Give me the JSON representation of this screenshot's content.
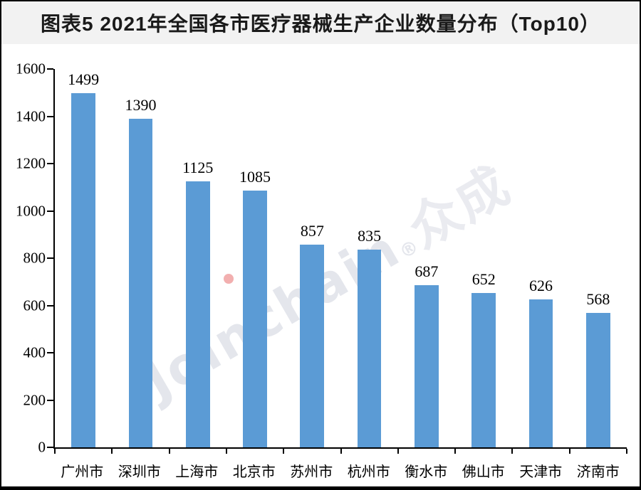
{
  "header": {
    "title": "图表5 2021年全国各市医疗器械生产企业数量分布（Top10）"
  },
  "watermark": {
    "text": "Joinchain",
    "reg": "®",
    "suffix": "众成"
  },
  "colors": {
    "bar": "#5B9BD5",
    "title_bar_bg": "#f2f2f2",
    "title_text": "#1a1a1a",
    "axis": "#000000",
    "frame": "#000000",
    "watermark_gray": "#b9becd",
    "watermark_dot_red": "#e86e6e"
  },
  "chart_data": {
    "type": "bar",
    "title": "图表5 2021年全国各市医疗器械生产企业数量分布（Top10）",
    "categories": [
      "广州市",
      "深圳市",
      "上海市",
      "北京市",
      "苏州市",
      "杭州市",
      "衡水市",
      "佛山市",
      "天津市",
      "济南市"
    ],
    "values": [
      1499,
      1390,
      1125,
      1085,
      857,
      835,
      687,
      652,
      626,
      568
    ],
    "bar_color": "#5B9BD5",
    "xlabel": "",
    "ylabel": "",
    "ylim": [
      0,
      1600
    ],
    "yticks": [
      0,
      200,
      400,
      600,
      800,
      1000,
      1200,
      1400,
      1600
    ],
    "grid": false,
    "legend": false,
    "value_labels": true
  }
}
